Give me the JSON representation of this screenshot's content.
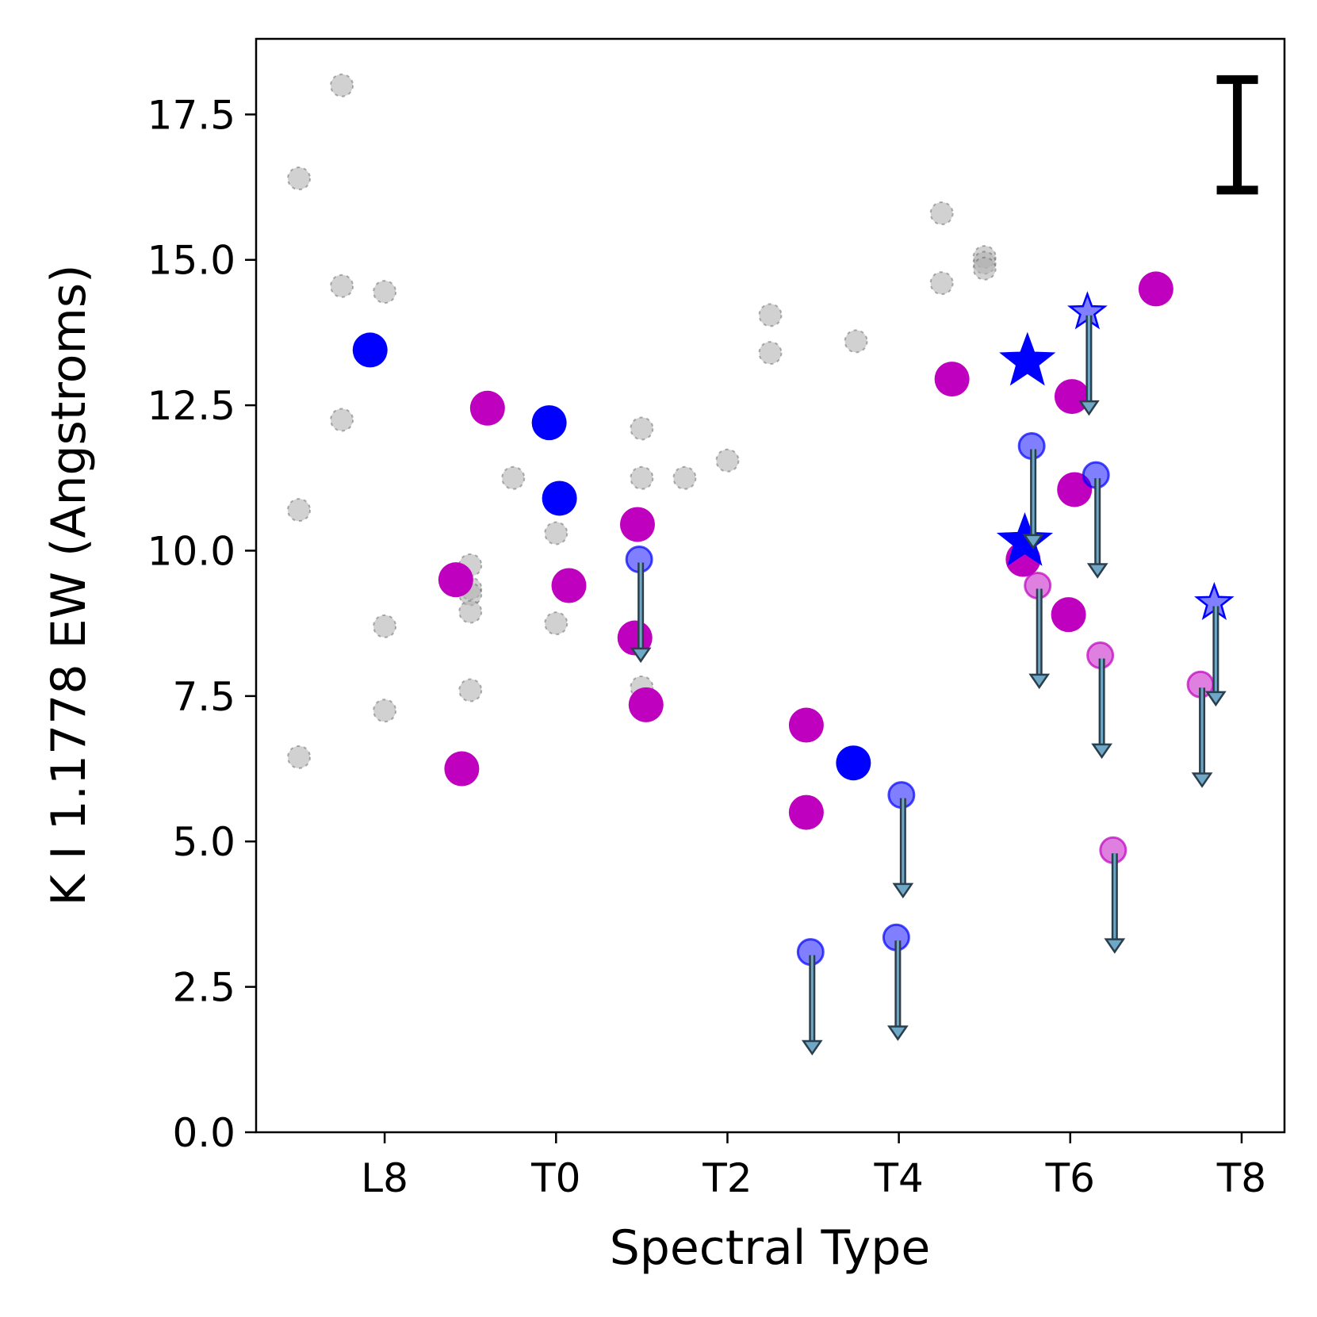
{
  "chart_data": {
    "type": "scatter",
    "title": "",
    "xlabel": "Spectral Type",
    "ylabel": "K I 1.1778 EW (Angstroms)",
    "x_encoding": "Spectral type numeric code: L8 = 8, T0 = 10, T2 = 12, T4 = 14, T6 = 16, T8 = 18",
    "xlim": [
      6.5,
      18.5
    ],
    "ylim": [
      0,
      18.8
    ],
    "xticks": [
      {
        "value": 8,
        "label": "L8"
      },
      {
        "value": 10,
        "label": "T0"
      },
      {
        "value": 12,
        "label": "T2"
      },
      {
        "value": 14,
        "label": "T4"
      },
      {
        "value": 16,
        "label": "T6"
      },
      {
        "value": 18,
        "label": "T8"
      }
    ],
    "yticks": [
      {
        "value": 0,
        "label": "0.0"
      },
      {
        "value": 2.5,
        "label": "2.5"
      },
      {
        "value": 5,
        "label": "5.0"
      },
      {
        "value": 7.5,
        "label": "7.5"
      },
      {
        "value": 10,
        "label": "10.0"
      },
      {
        "value": 12.5,
        "label": "12.5"
      },
      {
        "value": 15,
        "label": "15.0"
      },
      {
        "value": 17.5,
        "label": "17.5"
      }
    ],
    "typical_error_bar": {
      "x": 17.95,
      "y_low": 16.2,
      "y_high": 18.1
    },
    "colors": {
      "gray": "#b3b3b3",
      "blue": "#0000ff",
      "magenta": "#bf00bf",
      "arrow": "#4a6d82"
    },
    "series": [
      {
        "name": "comparison",
        "marker": "circle",
        "color": "#b3b3b3",
        "alpha": 0.6,
        "points": [
          [
            7.0,
            16.4
          ],
          [
            7.0,
            10.7
          ],
          [
            7.0,
            6.45
          ],
          [
            7.5,
            18.0
          ],
          [
            7.5,
            14.55
          ],
          [
            7.5,
            12.25
          ],
          [
            8.0,
            14.45
          ],
          [
            8.0,
            8.7
          ],
          [
            8.0,
            7.25
          ],
          [
            9.0,
            9.75
          ],
          [
            9.0,
            9.35
          ],
          [
            9.0,
            9.25
          ],
          [
            9.0,
            8.95
          ],
          [
            9.0,
            7.6
          ],
          [
            9.5,
            11.25
          ],
          [
            10.0,
            10.3
          ],
          [
            10.0,
            8.75
          ],
          [
            11.0,
            12.1
          ],
          [
            11.0,
            11.25
          ],
          [
            11.0,
            7.65
          ],
          [
            11.5,
            11.25
          ],
          [
            12.0,
            11.55
          ],
          [
            12.5,
            14.05
          ],
          [
            12.5,
            13.4
          ],
          [
            13.5,
            13.6
          ],
          [
            14.5,
            15.8
          ],
          [
            14.5,
            14.6
          ],
          [
            15.0,
            15.05
          ],
          [
            15.0,
            14.95
          ],
          [
            15.0,
            14.85
          ]
        ]
      },
      {
        "name": "blue-circles",
        "marker": "circle",
        "color": "#0000ff",
        "alpha": 1,
        "points": [
          [
            7.83,
            13.45
          ],
          [
            9.92,
            12.2
          ],
          [
            10.04,
            10.9
          ],
          [
            13.47,
            6.35
          ]
        ]
      },
      {
        "name": "magenta-circles",
        "marker": "circle",
        "color": "#bf00bf",
        "alpha": 1,
        "points": [
          [
            8.83,
            9.5
          ],
          [
            8.9,
            6.25
          ],
          [
            9.2,
            12.45
          ],
          [
            10.15,
            9.4
          ],
          [
            10.95,
            10.45
          ],
          [
            10.92,
            8.5
          ],
          [
            11.05,
            7.35
          ],
          [
            12.92,
            7.0
          ],
          [
            12.92,
            5.5
          ],
          [
            14.62,
            12.95
          ],
          [
            15.45,
            9.85
          ],
          [
            16.02,
            12.65
          ],
          [
            16.05,
            11.05
          ],
          [
            15.98,
            8.9
          ],
          [
            17.0,
            14.5
          ]
        ]
      },
      {
        "name": "blue-stars",
        "marker": "star",
        "color": "#0000ff",
        "alpha": 1,
        "points": [
          [
            15.5,
            13.25
          ],
          [
            15.47,
            10.15
          ]
        ]
      },
      {
        "name": "blue-upper-limits",
        "marker": "circle",
        "color": "#0000ff",
        "alpha": 0.5,
        "upper_limit": true,
        "points": [
          [
            10.97,
            9.85
          ],
          [
            12.97,
            3.1
          ],
          [
            14.03,
            5.8
          ],
          [
            13.97,
            3.35
          ],
          [
            15.55,
            11.8
          ],
          [
            16.3,
            11.3
          ]
        ]
      },
      {
        "name": "magenta-upper-limits",
        "marker": "circle",
        "color": "#bf00bf",
        "alpha": 0.5,
        "upper_limit": true,
        "points": [
          [
            15.62,
            9.4
          ],
          [
            16.35,
            8.2
          ],
          [
            16.5,
            4.85
          ],
          [
            17.52,
            7.7
          ]
        ]
      },
      {
        "name": "blue-star-upper-limits",
        "marker": "star",
        "color": "#0000ff",
        "alpha": 0.5,
        "upper_limit": true,
        "points": [
          [
            16.2,
            14.1
          ],
          [
            17.68,
            9.1
          ]
        ]
      }
    ]
  }
}
